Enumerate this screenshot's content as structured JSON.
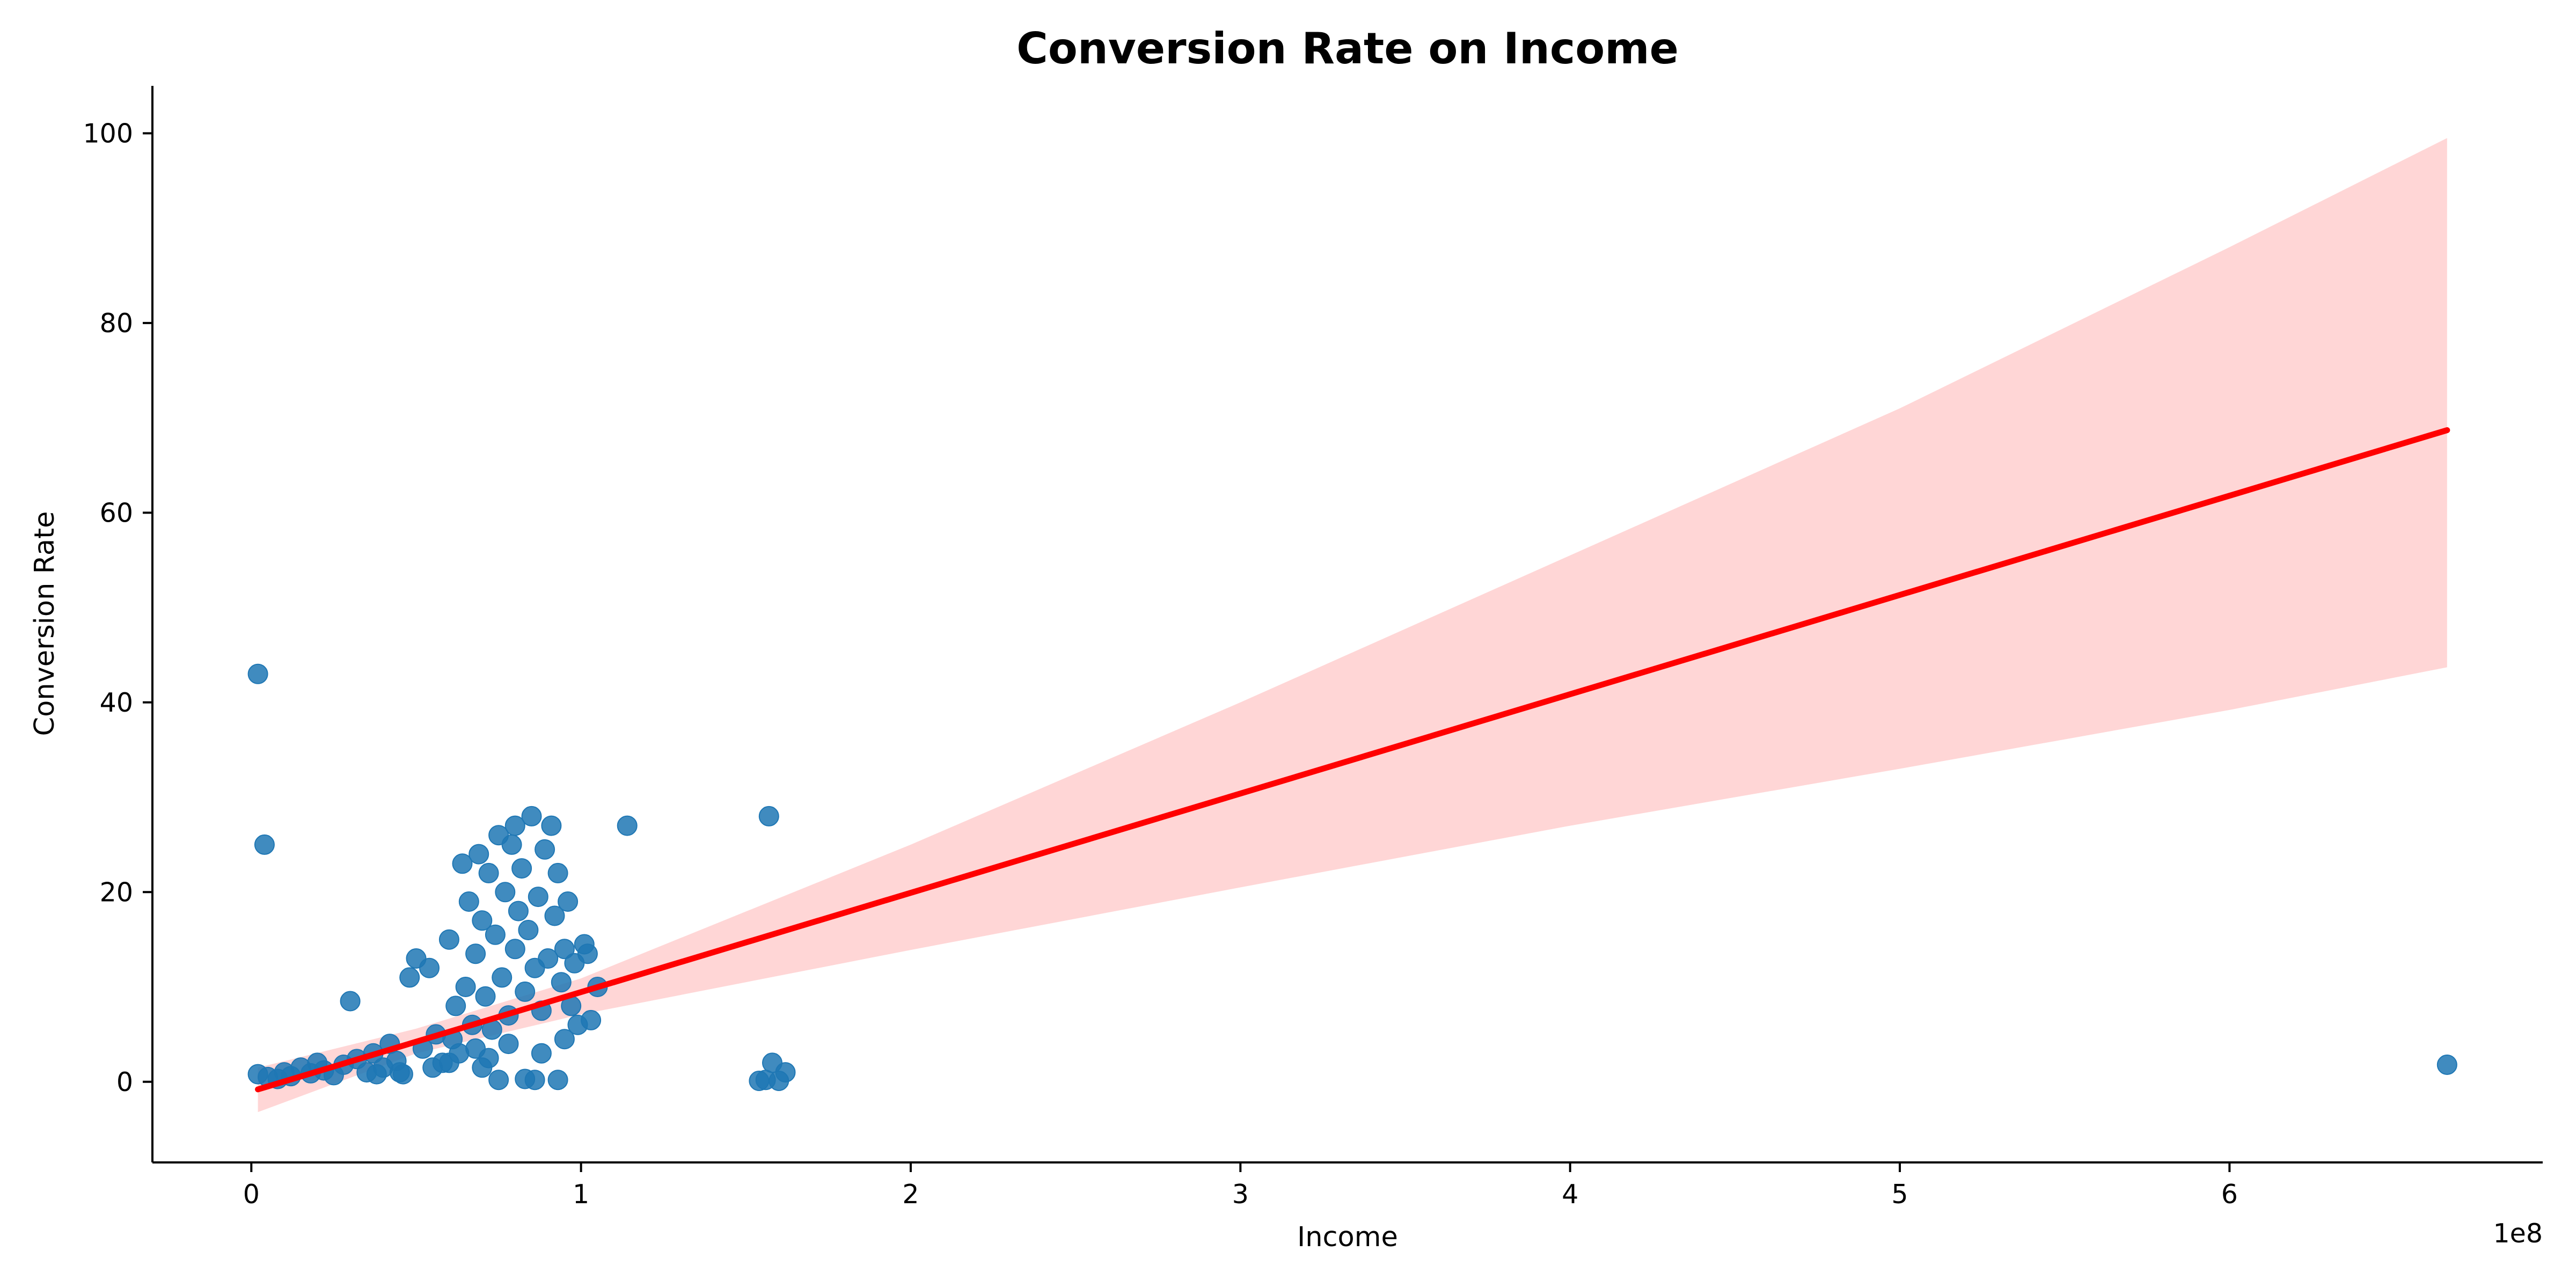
{
  "chart_data": {
    "type": "scatter",
    "title": "Conversion Rate on Income",
    "xlabel": "Income",
    "ylabel": "Conversion Rate",
    "x_offset_label": "1e8",
    "x_unit_scale": 100000000,
    "xlim": [
      -0.3,
      6.95
    ],
    "ylim": [
      -8.5,
      105
    ],
    "x_ticks": [
      0,
      1,
      2,
      3,
      4,
      5,
      6
    ],
    "x_tick_labels": [
      "0",
      "1",
      "2",
      "3",
      "4",
      "5",
      "6"
    ],
    "y_ticks": [
      0,
      20,
      40,
      60,
      80,
      100
    ],
    "y_tick_labels": [
      "0",
      "20",
      "40",
      "60",
      "80",
      "100"
    ],
    "grid": false,
    "legend": "none",
    "colors": {
      "points": "#1f77b4",
      "regression_line": "#ff0000",
      "confidence_band": "#ffd6d6"
    },
    "regression": {
      "x": [
        0.02,
        6.66
      ],
      "y": [
        -0.8,
        68.7
      ],
      "ci_x": [
        0.02,
        0.5,
        1.0,
        2.0,
        3.0,
        4.0,
        5.0,
        6.0,
        6.66
      ],
      "ci_upper": [
        1.5,
        5.6,
        10.9,
        25.0,
        40.0,
        55.5,
        71.0,
        88.0,
        99.5
      ],
      "ci_lower": [
        -3.2,
        3.0,
        7.1,
        13.9,
        20.5,
        27.0,
        33.0,
        39.2,
        43.7
      ]
    },
    "series": [
      {
        "values_are": "[income in units of 1e8, conversion rate]",
        "points": [
          [
            0.02,
            43.0
          ],
          [
            0.04,
            25.0
          ],
          [
            0.02,
            0.8
          ],
          [
            0.05,
            0.5
          ],
          [
            0.08,
            0.3
          ],
          [
            0.1,
            1.0
          ],
          [
            0.12,
            0.6
          ],
          [
            0.15,
            1.5
          ],
          [
            0.18,
            0.9
          ],
          [
            0.2,
            2.0
          ],
          [
            0.22,
            1.2
          ],
          [
            0.25,
            0.7
          ],
          [
            0.28,
            1.8
          ],
          [
            0.3,
            8.5
          ],
          [
            0.32,
            2.4
          ],
          [
            0.35,
            1.0
          ],
          [
            0.37,
            3.0
          ],
          [
            0.4,
            1.5
          ],
          [
            0.42,
            4.0
          ],
          [
            0.44,
            2.2
          ],
          [
            0.46,
            0.8
          ],
          [
            0.48,
            11.0
          ],
          [
            0.5,
            13.0
          ],
          [
            0.52,
            3.5
          ],
          [
            0.54,
            12.0
          ],
          [
            0.56,
            5.0
          ],
          [
            0.58,
            2.0
          ],
          [
            0.6,
            15.0
          ],
          [
            0.61,
            4.5
          ],
          [
            0.62,
            8.0
          ],
          [
            0.63,
            3.0
          ],
          [
            0.64,
            23.0
          ],
          [
            0.65,
            10.0
          ],
          [
            0.66,
            19.0
          ],
          [
            0.67,
            6.0
          ],
          [
            0.68,
            13.5
          ],
          [
            0.69,
            24.0
          ],
          [
            0.7,
            17.0
          ],
          [
            0.71,
            9.0
          ],
          [
            0.72,
            22.0
          ],
          [
            0.73,
            5.5
          ],
          [
            0.74,
            15.5
          ],
          [
            0.75,
            26.0
          ],
          [
            0.76,
            11.0
          ],
          [
            0.77,
            20.0
          ],
          [
            0.78,
            7.0
          ],
          [
            0.79,
            25.0
          ],
          [
            0.8,
            27.0
          ],
          [
            0.8,
            14.0
          ],
          [
            0.81,
            18.0
          ],
          [
            0.82,
            22.5
          ],
          [
            0.83,
            9.5
          ],
          [
            0.84,
            16.0
          ],
          [
            0.85,
            28.0
          ],
          [
            0.86,
            12.0
          ],
          [
            0.87,
            19.5
          ],
          [
            0.88,
            7.5
          ],
          [
            0.89,
            24.5
          ],
          [
            0.9,
            13.0
          ],
          [
            0.91,
            27.0
          ],
          [
            0.92,
            17.5
          ],
          [
            0.93,
            22.0
          ],
          [
            0.94,
            10.5
          ],
          [
            0.95,
            14.0
          ],
          [
            0.96,
            19.0
          ],
          [
            0.97,
            8.0
          ],
          [
            0.98,
            12.5
          ],
          [
            0.99,
            6.0
          ],
          [
            1.01,
            14.5
          ],
          [
            1.02,
            13.5
          ],
          [
            1.03,
            6.5
          ],
          [
            1.05,
            10.0
          ],
          [
            1.14,
            27.0
          ],
          [
            0.72,
            2.5
          ],
          [
            0.75,
            0.2
          ],
          [
            0.83,
            0.3
          ],
          [
            0.86,
            0.2
          ],
          [
            0.93,
            0.2
          ],
          [
            0.68,
            3.5
          ],
          [
            0.7,
            1.5
          ],
          [
            0.78,
            4.0
          ],
          [
            0.88,
            3.0
          ],
          [
            0.95,
            4.5
          ],
          [
            0.6,
            2.0
          ],
          [
            0.55,
            1.5
          ],
          [
            0.45,
            1.0
          ],
          [
            0.38,
            0.8
          ],
          [
            1.57,
            28.0
          ],
          [
            1.54,
            0.1
          ],
          [
            1.56,
            0.2
          ],
          [
            1.58,
            2.0
          ],
          [
            1.6,
            0.1
          ],
          [
            1.62,
            1.0
          ],
          [
            6.66,
            1.8
          ]
        ]
      }
    ]
  }
}
